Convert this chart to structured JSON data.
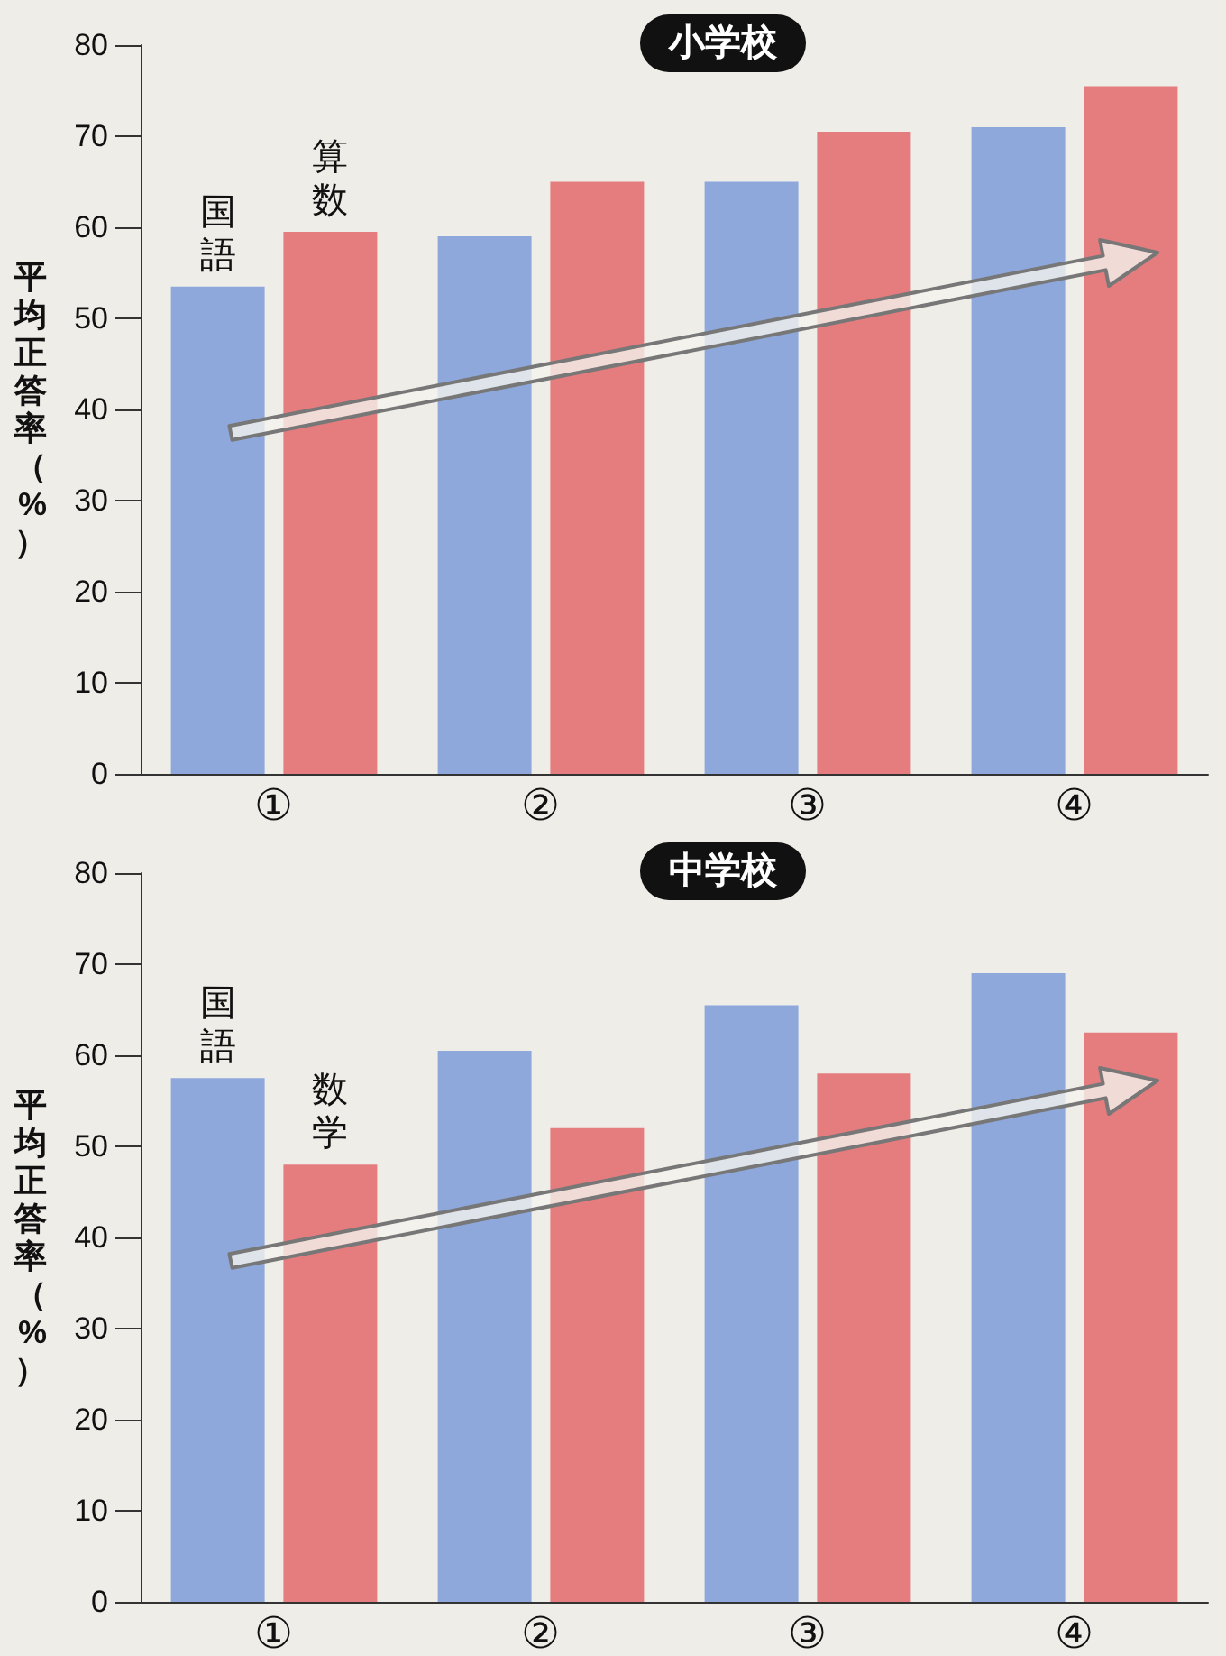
{
  "chart_data": [
    {
      "type": "bar",
      "title": "小学校",
      "ylabel": "平均正答率（%）",
      "categories": [
        "①",
        "②",
        "③",
        "④"
      ],
      "series": [
        {
          "name": "国語",
          "color": "#8ea8dc",
          "values": [
            53.5,
            59,
            65,
            71
          ]
        },
        {
          "name": "算数",
          "color": "#e57c7e",
          "values": [
            59.5,
            65,
            70.5,
            75.5
          ]
        }
      ],
      "ylim": [
        0,
        80
      ],
      "yticks": [
        0,
        10,
        20,
        30,
        40,
        50,
        60,
        70,
        80
      ],
      "grid": false,
      "legend": false
    },
    {
      "type": "bar",
      "title": "中学校",
      "ylabel": "平均正答率（%）",
      "categories": [
        "①",
        "②",
        "③",
        "④"
      ],
      "series": [
        {
          "name": "国語",
          "color": "#8ea8dc",
          "values": [
            57.5,
            60.5,
            65.5,
            69
          ]
        },
        {
          "name": "数学",
          "color": "#e57c7e",
          "values": [
            48,
            52,
            58,
            62.5
          ]
        }
      ],
      "ylim": [
        0,
        80
      ],
      "yticks": [
        0,
        10,
        20,
        30,
        40,
        50,
        60,
        70,
        80
      ],
      "grid": false,
      "legend": false
    }
  ]
}
